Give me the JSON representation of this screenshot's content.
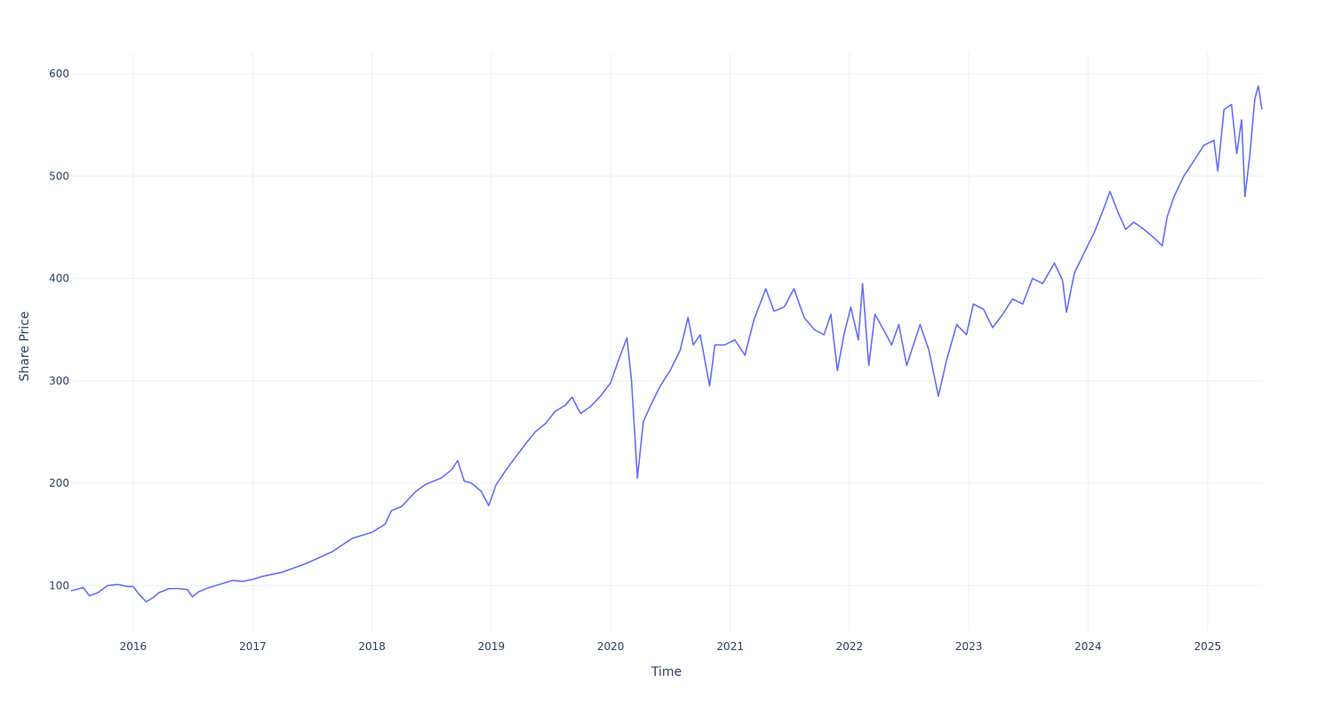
{
  "chart_data": {
    "type": "line",
    "title": "",
    "xlabel": "Time",
    "ylabel": "Share Price",
    "xlim": [
      "2015-06-25",
      "2025-06-16"
    ],
    "ylim": [
      56,
      620
    ],
    "x_ticks": [
      "2016",
      "2017",
      "2018",
      "2019",
      "2020",
      "2021",
      "2022",
      "2023",
      "2024",
      "2025"
    ],
    "y_ticks": [
      100,
      200,
      300,
      400,
      500,
      600
    ],
    "grid": true,
    "legend": "none",
    "series": [
      {
        "color": "#636efa",
        "points": [
          [
            "2015-06-25",
            95
          ],
          [
            "2015-07-10",
            96
          ],
          [
            "2015-08-01",
            98
          ],
          [
            "2015-08-20",
            90
          ],
          [
            "2015-09-15",
            93
          ],
          [
            "2015-10-15",
            100
          ],
          [
            "2015-11-15",
            101
          ],
          [
            "2015-12-15",
            99
          ],
          [
            "2016-01-01",
            99
          ],
          [
            "2016-01-20",
            91
          ],
          [
            "2016-02-10",
            84
          ],
          [
            "2016-03-01",
            88
          ],
          [
            "2016-03-20",
            93
          ],
          [
            "2016-04-20",
            97
          ],
          [
            "2016-05-20",
            97
          ],
          [
            "2016-06-15",
            96
          ],
          [
            "2016-06-30",
            89
          ],
          [
            "2016-07-20",
            94
          ],
          [
            "2016-08-20",
            98
          ],
          [
            "2016-10-01",
            102
          ],
          [
            "2016-11-01",
            105
          ],
          [
            "2016-12-01",
            104
          ],
          [
            "2017-01-01",
            106
          ],
          [
            "2017-02-01",
            109
          ],
          [
            "2017-04-01",
            113
          ],
          [
            "2017-06-01",
            120
          ],
          [
            "2017-07-01",
            124
          ],
          [
            "2017-09-01",
            133
          ],
          [
            "2017-11-01",
            146
          ],
          [
            "2018-01-01",
            152
          ],
          [
            "2018-02-10",
            160
          ],
          [
            "2018-03-01",
            173
          ],
          [
            "2018-04-01",
            177
          ],
          [
            "2018-05-15",
            192
          ],
          [
            "2018-06-15",
            199
          ],
          [
            "2018-08-01",
            205
          ],
          [
            "2018-09-01",
            213
          ],
          [
            "2018-09-20",
            222
          ],
          [
            "2018-10-10",
            202
          ],
          [
            "2018-11-01",
            200
          ],
          [
            "2018-12-01",
            192
          ],
          [
            "2018-12-24",
            178
          ],
          [
            "2019-01-15",
            198
          ],
          [
            "2019-02-15",
            213
          ],
          [
            "2019-03-15",
            225
          ],
          [
            "2019-04-15",
            238
          ],
          [
            "2019-05-15",
            250
          ],
          [
            "2019-06-15",
            258
          ],
          [
            "2019-07-15",
            270
          ],
          [
            "2019-08-15",
            276
          ],
          [
            "2019-09-05",
            284
          ],
          [
            "2019-10-01",
            268
          ],
          [
            "2019-11-01",
            275
          ],
          [
            "2019-12-01",
            285
          ],
          [
            "2020-01-01",
            298
          ],
          [
            "2020-01-25",
            320
          ],
          [
            "2020-02-20",
            342
          ],
          [
            "2020-03-05",
            300
          ],
          [
            "2020-03-23",
            205
          ],
          [
            "2020-04-10",
            260
          ],
          [
            "2020-05-01",
            275
          ],
          [
            "2020-06-01",
            295
          ],
          [
            "2020-07-01",
            310
          ],
          [
            "2020-08-01",
            330
          ],
          [
            "2020-08-25",
            362
          ],
          [
            "2020-09-10",
            335
          ],
          [
            "2020-10-01",
            345
          ],
          [
            "2020-10-30",
            295
          ],
          [
            "2020-11-15",
            335
          ],
          [
            "2020-12-15",
            335
          ],
          [
            "2021-01-15",
            340
          ],
          [
            "2021-02-15",
            325
          ],
          [
            "2021-03-15",
            360
          ],
          [
            "2021-04-20",
            390
          ],
          [
            "2021-05-15",
            368
          ],
          [
            "2021-06-15",
            372
          ],
          [
            "2021-07-15",
            390
          ],
          [
            "2021-08-15",
            362
          ],
          [
            "2021-09-15",
            350
          ],
          [
            "2021-10-15",
            345
          ],
          [
            "2021-11-05",
            365
          ],
          [
            "2021-11-25",
            310
          ],
          [
            "2021-12-15",
            345
          ],
          [
            "2022-01-05",
            372
          ],
          [
            "2022-01-28",
            340
          ],
          [
            "2022-02-10",
            395
          ],
          [
            "2022-03-01",
            315
          ],
          [
            "2022-03-20",
            365
          ],
          [
            "2022-04-15",
            350
          ],
          [
            "2022-05-10",
            335
          ],
          [
            "2022-06-01",
            355
          ],
          [
            "2022-06-25",
            315
          ],
          [
            "2022-08-05",
            355
          ],
          [
            "2022-09-01",
            330
          ],
          [
            "2022-09-30",
            285
          ],
          [
            "2022-10-25",
            320
          ],
          [
            "2022-11-25",
            355
          ],
          [
            "2022-12-25",
            345
          ],
          [
            "2023-01-15",
            375
          ],
          [
            "2023-02-15",
            370
          ],
          [
            "2023-03-15",
            352
          ],
          [
            "2023-04-15",
            365
          ],
          [
            "2023-05-15",
            380
          ],
          [
            "2023-06-15",
            375
          ],
          [
            "2023-07-15",
            400
          ],
          [
            "2023-08-15",
            395
          ],
          [
            "2023-09-20",
            415
          ],
          [
            "2023-10-15",
            398
          ],
          [
            "2023-10-27",
            367
          ],
          [
            "2023-11-20",
            405
          ],
          [
            "2023-12-20",
            425
          ],
          [
            "2024-01-20",
            445
          ],
          [
            "2024-02-20",
            470
          ],
          [
            "2024-03-08",
            485
          ],
          [
            "2024-04-01",
            465
          ],
          [
            "2024-04-25",
            448
          ],
          [
            "2024-05-20",
            455
          ],
          [
            "2024-06-20",
            448
          ],
          [
            "2024-07-20",
            440
          ],
          [
            "2024-08-15",
            432
          ],
          [
            "2024-08-30",
            460
          ],
          [
            "2024-09-20",
            480
          ],
          [
            "2024-10-20",
            500
          ],
          [
            "2024-11-20",
            515
          ],
          [
            "2024-12-20",
            530
          ],
          [
            "2025-01-20",
            535
          ],
          [
            "2025-02-01",
            505
          ],
          [
            "2025-02-20",
            565
          ],
          [
            "2025-03-15",
            570
          ],
          [
            "2025-03-31",
            522
          ],
          [
            "2025-04-15",
            555
          ],
          [
            "2025-04-25",
            480
          ],
          [
            "2025-05-10",
            520
          ],
          [
            "2025-05-25",
            575
          ],
          [
            "2025-06-05",
            588
          ],
          [
            "2025-06-16",
            565
          ]
        ]
      }
    ]
  }
}
